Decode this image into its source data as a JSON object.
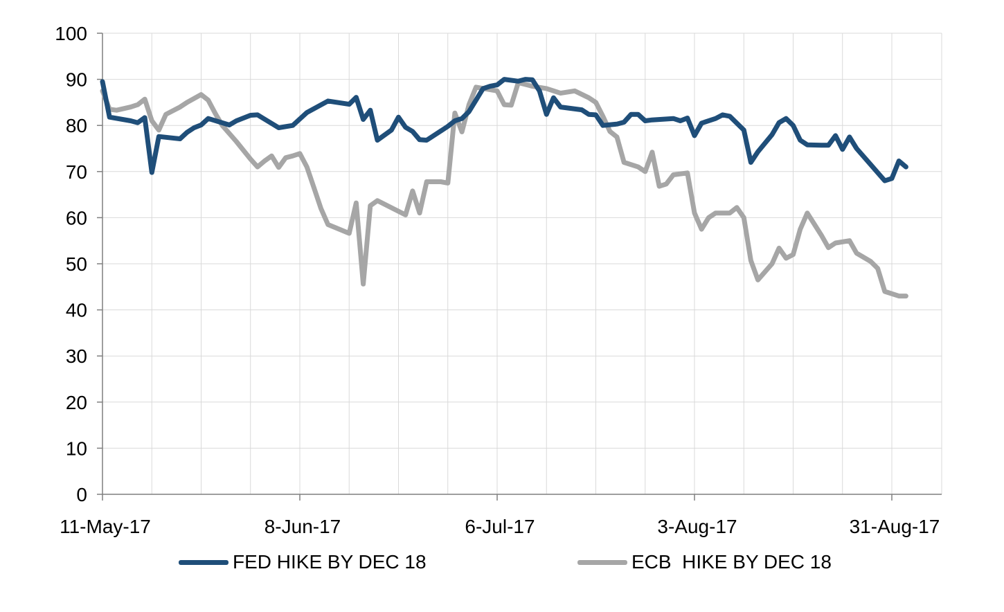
{
  "chart_data": {
    "type": "line",
    "title": "",
    "xlabel": "",
    "ylabel": "",
    "ylim": [
      0,
      100
    ],
    "yticks": [
      0,
      10,
      20,
      30,
      40,
      50,
      60,
      70,
      80,
      90,
      100
    ],
    "x_tick_labels": [
      "11-May-17",
      "8-Jun-17",
      "6-Jul-17",
      "3-Aug-17",
      "31-Aug-17"
    ],
    "x_tick_dates": [
      "2017-05-11",
      "2017-06-08",
      "2017-07-06",
      "2017-08-03",
      "2017-08-31"
    ],
    "xlim": [
      "2017-05-11",
      "2017-09-02"
    ],
    "grid": true,
    "legend_position": "bottom",
    "series": [
      {
        "name": "FED HIKE BY DEC 18",
        "color": "#1f4e79",
        "points": [
          [
            "2017-05-11",
            89.5
          ],
          [
            "2017-05-12",
            81.8
          ],
          [
            "2017-05-15",
            81.0
          ],
          [
            "2017-05-16",
            80.6
          ],
          [
            "2017-05-17",
            81.7
          ],
          [
            "2017-05-18",
            69.8
          ],
          [
            "2017-05-19",
            77.6
          ],
          [
            "2017-05-22",
            77.1
          ],
          [
            "2017-05-23",
            78.5
          ],
          [
            "2017-05-24",
            79.5
          ],
          [
            "2017-05-25",
            80.1
          ],
          [
            "2017-05-26",
            81.5
          ],
          [
            "2017-05-29",
            80.1
          ],
          [
            "2017-05-30",
            81.0
          ],
          [
            "2017-06-01",
            82.2
          ],
          [
            "2017-06-02",
            82.3
          ],
          [
            "2017-06-05",
            79.5
          ],
          [
            "2017-06-07",
            80.0
          ],
          [
            "2017-06-09",
            82.8
          ],
          [
            "2017-06-12",
            85.3
          ],
          [
            "2017-06-15",
            84.6
          ],
          [
            "2017-06-16",
            86.1
          ],
          [
            "2017-06-17",
            81.3
          ],
          [
            "2017-06-18",
            83.3
          ],
          [
            "2017-06-19",
            76.8
          ],
          [
            "2017-06-21",
            79.0
          ],
          [
            "2017-06-22",
            81.8
          ],
          [
            "2017-06-23",
            79.6
          ],
          [
            "2017-06-24",
            78.7
          ],
          [
            "2017-06-25",
            76.9
          ],
          [
            "2017-06-26",
            76.8
          ],
          [
            "2017-06-28",
            78.8
          ],
          [
            "2017-06-29",
            79.8
          ],
          [
            "2017-06-30",
            81.0
          ],
          [
            "2017-07-01",
            81.5
          ],
          [
            "2017-07-02",
            83.0
          ],
          [
            "2017-07-03",
            85.5
          ],
          [
            "2017-07-04",
            88.0
          ],
          [
            "2017-07-05",
            88.5
          ],
          [
            "2017-07-06",
            88.8
          ],
          [
            "2017-07-07",
            90.0
          ],
          [
            "2017-07-09",
            89.6
          ],
          [
            "2017-07-10",
            90.0
          ],
          [
            "2017-07-11",
            89.9
          ],
          [
            "2017-07-12",
            87.5
          ],
          [
            "2017-07-13",
            82.4
          ],
          [
            "2017-07-14",
            86.0
          ],
          [
            "2017-07-15",
            84.0
          ],
          [
            "2017-07-18",
            83.4
          ],
          [
            "2017-07-19",
            82.4
          ],
          [
            "2017-07-20",
            82.3
          ],
          [
            "2017-07-21",
            80.0
          ],
          [
            "2017-07-23",
            80.3
          ],
          [
            "2017-07-24",
            80.7
          ],
          [
            "2017-07-25",
            82.4
          ],
          [
            "2017-07-26",
            82.4
          ],
          [
            "2017-07-27",
            81.0
          ],
          [
            "2017-07-28",
            81.2
          ],
          [
            "2017-07-31",
            81.5
          ],
          [
            "2017-08-01",
            81.0
          ],
          [
            "2017-08-02",
            81.6
          ],
          [
            "2017-08-03",
            77.8
          ],
          [
            "2017-08-04",
            80.5
          ],
          [
            "2017-08-06",
            81.5
          ],
          [
            "2017-08-07",
            82.3
          ],
          [
            "2017-08-08",
            82.0
          ],
          [
            "2017-08-10",
            79.0
          ],
          [
            "2017-08-11",
            72.0
          ],
          [
            "2017-08-12",
            74.3
          ],
          [
            "2017-08-14",
            78.0
          ],
          [
            "2017-08-15",
            80.6
          ],
          [
            "2017-08-16",
            81.5
          ],
          [
            "2017-08-17",
            80.0
          ],
          [
            "2017-08-18",
            76.8
          ],
          [
            "2017-08-19",
            75.8
          ],
          [
            "2017-08-21",
            75.7
          ],
          [
            "2017-08-22",
            75.7
          ],
          [
            "2017-08-23",
            77.8
          ],
          [
            "2017-08-24",
            74.8
          ],
          [
            "2017-08-25",
            77.5
          ],
          [
            "2017-08-26",
            75.0
          ],
          [
            "2017-08-28",
            71.5
          ],
          [
            "2017-08-30",
            68.0
          ],
          [
            "2017-08-31",
            68.5
          ],
          [
            "2017-09-01",
            72.3
          ],
          [
            "2017-09-02",
            71.0
          ]
        ]
      },
      {
        "name": "ECB  HIKE BY DEC 18",
        "color": "#a6a6a6",
        "points": [
          [
            "2017-05-11",
            87.5
          ],
          [
            "2017-05-12",
            83.5
          ],
          [
            "2017-05-13",
            83.3
          ],
          [
            "2017-05-15",
            84.0
          ],
          [
            "2017-05-16",
            84.5
          ],
          [
            "2017-05-17",
            85.7
          ],
          [
            "2017-05-18",
            81.0
          ],
          [
            "2017-05-19",
            79.0
          ],
          [
            "2017-05-20",
            82.4
          ],
          [
            "2017-05-22",
            84.0
          ],
          [
            "2017-05-23",
            85.0
          ],
          [
            "2017-05-25",
            86.7
          ],
          [
            "2017-05-26",
            85.5
          ],
          [
            "2017-05-27",
            82.6
          ],
          [
            "2017-05-28",
            80.0
          ],
          [
            "2017-05-30",
            76.5
          ],
          [
            "2017-06-01",
            72.7
          ],
          [
            "2017-06-02",
            71.0
          ],
          [
            "2017-06-03",
            72.3
          ],
          [
            "2017-06-04",
            73.4
          ],
          [
            "2017-06-05",
            70.9
          ],
          [
            "2017-06-06",
            73.0
          ],
          [
            "2017-06-07",
            73.4
          ],
          [
            "2017-06-08",
            73.9
          ],
          [
            "2017-06-09",
            71.0
          ],
          [
            "2017-06-10",
            66.5
          ],
          [
            "2017-06-11",
            62.0
          ],
          [
            "2017-06-12",
            58.5
          ],
          [
            "2017-06-15",
            56.6
          ],
          [
            "2017-06-16",
            63.2
          ],
          [
            "2017-06-17",
            45.6
          ],
          [
            "2017-06-18",
            62.6
          ],
          [
            "2017-06-19",
            63.7
          ],
          [
            "2017-06-23",
            60.6
          ],
          [
            "2017-06-24",
            65.8
          ],
          [
            "2017-06-25",
            61.0
          ],
          [
            "2017-06-26",
            67.8
          ],
          [
            "2017-06-28",
            67.8
          ],
          [
            "2017-06-29",
            67.5
          ],
          [
            "2017-06-30",
            82.7
          ],
          [
            "2017-07-01",
            78.6
          ],
          [
            "2017-07-02",
            84.5
          ],
          [
            "2017-07-03",
            88.3
          ],
          [
            "2017-07-06",
            87.5
          ],
          [
            "2017-07-07",
            84.5
          ],
          [
            "2017-07-08",
            84.4
          ],
          [
            "2017-07-09",
            89.3
          ],
          [
            "2017-07-11",
            88.5
          ],
          [
            "2017-07-13",
            88.0
          ],
          [
            "2017-07-15",
            87.0
          ],
          [
            "2017-07-17",
            87.5
          ],
          [
            "2017-07-19",
            86.0
          ],
          [
            "2017-07-20",
            85.0
          ],
          [
            "2017-07-21",
            82.0
          ],
          [
            "2017-07-22",
            78.7
          ],
          [
            "2017-07-23",
            77.5
          ],
          [
            "2017-07-24",
            72.0
          ],
          [
            "2017-07-26",
            71.0
          ],
          [
            "2017-07-27",
            70.0
          ],
          [
            "2017-07-28",
            74.2
          ],
          [
            "2017-07-29",
            66.8
          ],
          [
            "2017-07-30",
            67.3
          ],
          [
            "2017-07-31",
            69.3
          ],
          [
            "2017-08-02",
            69.7
          ],
          [
            "2017-08-03",
            61.0
          ],
          [
            "2017-08-04",
            57.5
          ],
          [
            "2017-08-05",
            60.0
          ],
          [
            "2017-08-06",
            61.0
          ],
          [
            "2017-08-08",
            61.0
          ],
          [
            "2017-08-09",
            62.2
          ],
          [
            "2017-08-10",
            60.0
          ],
          [
            "2017-08-11",
            50.7
          ],
          [
            "2017-08-12",
            46.5
          ],
          [
            "2017-08-14",
            50.0
          ],
          [
            "2017-08-15",
            53.4
          ],
          [
            "2017-08-16",
            51.2
          ],
          [
            "2017-08-17",
            52.0
          ],
          [
            "2017-08-18",
            57.5
          ],
          [
            "2017-08-19",
            61.0
          ],
          [
            "2017-08-21",
            56.2
          ],
          [
            "2017-08-22",
            53.5
          ],
          [
            "2017-08-23",
            54.5
          ],
          [
            "2017-08-25",
            55.0
          ],
          [
            "2017-08-26",
            52.3
          ],
          [
            "2017-08-28",
            50.5
          ],
          [
            "2017-08-29",
            49.0
          ],
          [
            "2017-08-30",
            44.0
          ],
          [
            "2017-09-01",
            43.0
          ],
          [
            "2017-09-02",
            43.0
          ]
        ]
      }
    ]
  }
}
